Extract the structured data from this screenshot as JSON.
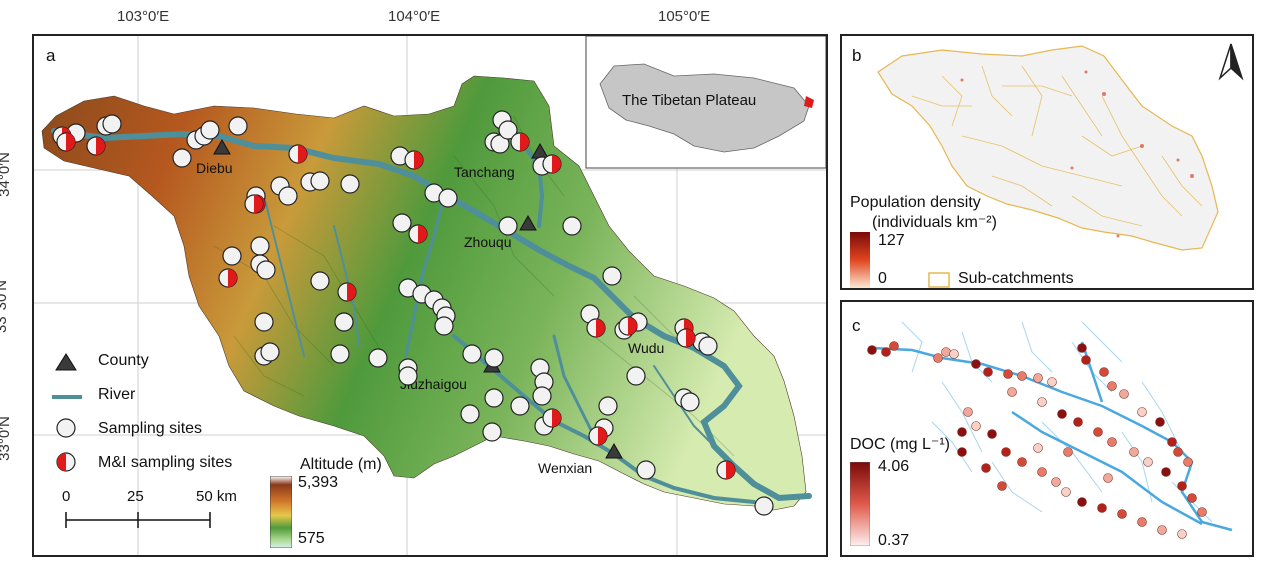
{
  "panel_a": {
    "label": "a",
    "lon_ticks": [
      "103°0′E",
      "104°0′E",
      "105°0′E"
    ],
    "lat_ticks": [
      "34°0′N",
      "33°30′N",
      "33°0′N"
    ],
    "inset_label": "The Tibetan Plateau",
    "towns": [
      "Diebu",
      "Tanchang",
      "Zhouqu",
      "Wudu",
      "Jiuzhaigou",
      "Wenxian"
    ],
    "legend": {
      "county": "County",
      "river": "River",
      "sampling_sites": "Sampling sites",
      "mi_sampling_sites": "M&I sampling sites"
    },
    "altitude": {
      "title": "Altitude (m)",
      "max": "5,393",
      "min": "575"
    },
    "scale": {
      "ticks": [
        "0",
        "25",
        "50 km"
      ]
    }
  },
  "panel_b": {
    "label": "b",
    "legend_title": "Population density",
    "legend_unit": "(individuals km⁻²)",
    "max": "127",
    "min": "0",
    "subcatchments": "Sub-catchments"
  },
  "panel_c": {
    "label": "c",
    "legend_title": "DOC (mg L⁻¹)",
    "max": "4.06",
    "min": "0.37"
  },
  "colors": {
    "river": "#4f8f9a",
    "mi_red": "#e01a1a",
    "county": "#3a3a3a",
    "subcatchment": "#e6b850",
    "stream_blue": "#4aa8e0"
  }
}
